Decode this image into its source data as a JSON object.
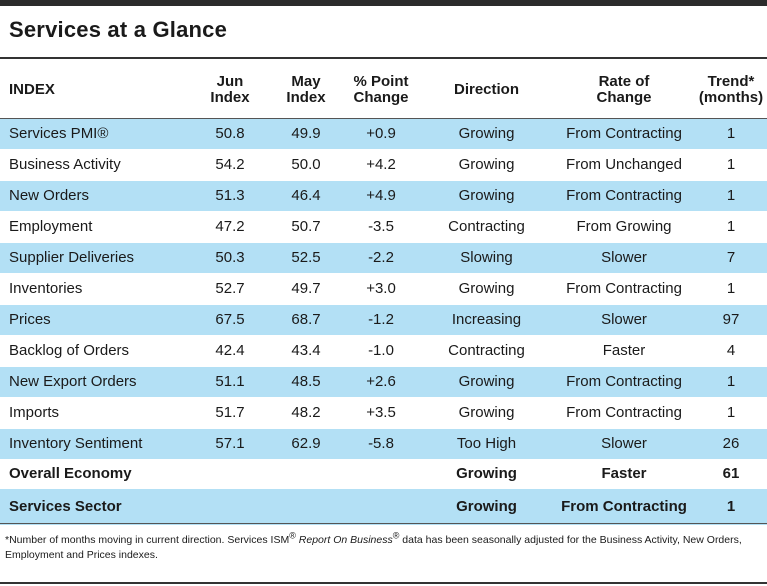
{
  "title": "Services at a Glance",
  "headers": {
    "index": "INDEX",
    "jun_1": "Jun",
    "jun_2": "Index",
    "may_1": "May",
    "may_2": "Index",
    "chg_1": "% Point",
    "chg_2": "Change",
    "direction": "Direction",
    "rate_1": "Rate of",
    "rate_2": "Change",
    "trend_1": "Trend*",
    "trend_2": "(months)"
  },
  "rows": [
    {
      "index": "Services PMI®",
      "jun": "50.8",
      "may": "49.9",
      "change": "+0.9",
      "direction": "Growing",
      "rate": "From Contracting",
      "trend": "1"
    },
    {
      "index": "Business Activity",
      "jun": "54.2",
      "may": "50.0",
      "change": "+4.2",
      "direction": "Growing",
      "rate": "From Unchanged",
      "trend": "1"
    },
    {
      "index": "New Orders",
      "jun": "51.3",
      "may": "46.4",
      "change": "+4.9",
      "direction": "Growing",
      "rate": "From Contracting",
      "trend": "1"
    },
    {
      "index": "Employment",
      "jun": "47.2",
      "may": "50.7",
      "change": "-3.5",
      "direction": "Contracting",
      "rate": "From Growing",
      "trend": "1"
    },
    {
      "index": "Supplier Deliveries",
      "jun": "50.3",
      "may": "52.5",
      "change": "-2.2",
      "direction": "Slowing",
      "rate": "Slower",
      "trend": "7"
    },
    {
      "index": "Inventories",
      "jun": "52.7",
      "may": "49.7",
      "change": "+3.0",
      "direction": "Growing",
      "rate": "From Contracting",
      "trend": "1"
    },
    {
      "index": "Prices",
      "jun": "67.5",
      "may": "68.7",
      "change": "-1.2",
      "direction": "Increasing",
      "rate": "Slower",
      "trend": "97"
    },
    {
      "index": "Backlog of Orders",
      "jun": "42.4",
      "may": "43.4",
      "change": "-1.0",
      "direction": "Contracting",
      "rate": "Faster",
      "trend": "4"
    },
    {
      "index": "New Export Orders",
      "jun": "51.1",
      "may": "48.5",
      "change": "+2.6",
      "direction": "Growing",
      "rate": "From Contracting",
      "trend": "1"
    },
    {
      "index": "Imports",
      "jun": "51.7",
      "may": "48.2",
      "change": "+3.5",
      "direction": "Growing",
      "rate": "From Contracting",
      "trend": "1"
    },
    {
      "index": "Inventory Sentiment",
      "jun": "57.1",
      "may": "62.9",
      "change": "-5.8",
      "direction": "Too High",
      "rate": "Slower",
      "trend": "26"
    }
  ],
  "summary": [
    {
      "index": "Overall Economy",
      "direction": "Growing",
      "rate": "Faster",
      "trend": "61"
    },
    {
      "index": "Services Sector",
      "direction": "Growing",
      "rate": "From Contracting",
      "trend": "1"
    }
  ],
  "footnote": {
    "part1": "*Number of months moving in current direction. Services ISM",
    "reg1": "®",
    "part2": " ",
    "italic": "Report On Business",
    "reg2": "®",
    "part3": " data has been seasonally adjusted for the Business Activity, New Orders, Employment and Prices indexes."
  },
  "colors": {
    "row_blue": "#b3e0f5",
    "rule": "#333333"
  }
}
